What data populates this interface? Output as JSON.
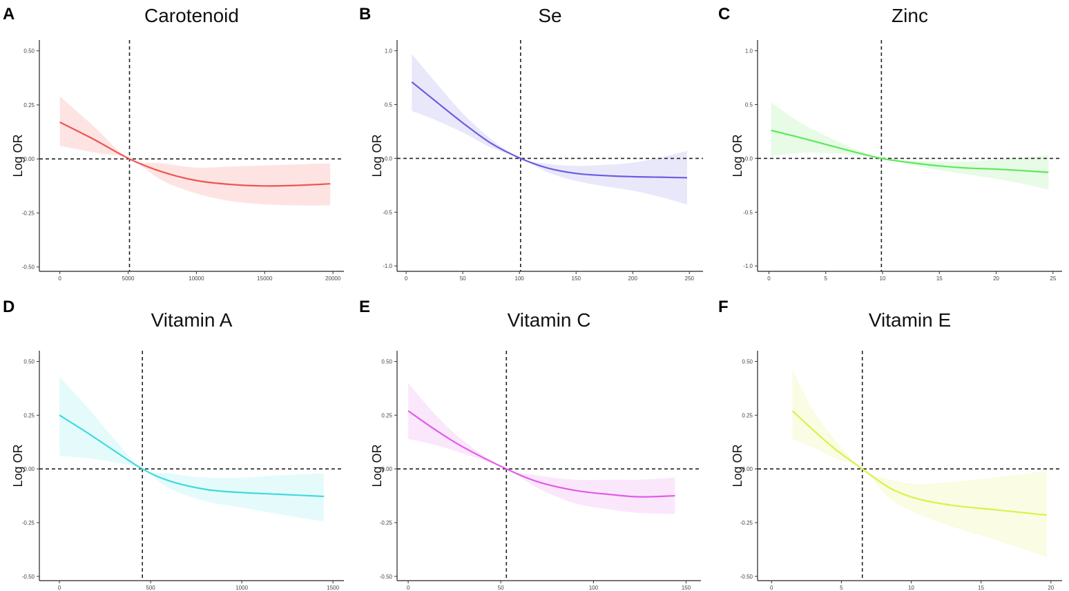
{
  "figure": {
    "y_axis_label": "Log OR"
  },
  "chart_data": [
    {
      "type": "line",
      "letter": "A",
      "title": "Carotenoid",
      "color": "#f0544f",
      "band_color": "#fde3e2",
      "xlim": [
        -1500,
        20800
      ],
      "ylim": [
        -0.52,
        0.55
      ],
      "xticks": [
        0,
        5000,
        10000,
        15000,
        20000
      ],
      "xtick_labels": [
        "0",
        "5000",
        "10000",
        "15000",
        "20000"
      ],
      "yticks": [
        -0.5,
        -0.25,
        0.0,
        0.25,
        0.5
      ],
      "ytick_labels": [
        "-0.50",
        "-0.25",
        "0.00",
        "0.25",
        "0.50"
      ],
      "reference_x": 5100,
      "reference_y": 0,
      "series": [
        {
          "name": "Carotenoid",
          "x": [
            0,
            2500,
            5100,
            7500,
            10000,
            12500,
            15000,
            17500,
            19800
          ],
          "y": [
            0.17,
            0.09,
            0.0,
            -0.06,
            -0.1,
            -0.118,
            -0.125,
            -0.122,
            -0.115
          ],
          "lower": [
            0.06,
            0.03,
            0.0,
            -0.1,
            -0.16,
            -0.195,
            -0.21,
            -0.215,
            -0.215
          ],
          "upper": [
            0.29,
            0.15,
            0.0,
            -0.02,
            -0.04,
            -0.035,
            -0.03,
            -0.025,
            -0.02
          ]
        }
      ]
    },
    {
      "type": "line",
      "letter": "B",
      "title": "Se",
      "color": "#6a5ce0",
      "band_color": "#e8e7fb",
      "xlim": [
        -8,
        262
      ],
      "ylim": [
        -1.05,
        1.1
      ],
      "xticks": [
        0,
        50,
        100,
        150,
        200,
        250
      ],
      "xtick_labels": [
        "0",
        "50",
        "100",
        "150",
        "200",
        "250"
      ],
      "yticks": [
        -1.0,
        -0.5,
        0.0,
        0.5,
        1.0
      ],
      "ytick_labels": [
        "-1.0",
        "-0.5",
        "0.0",
        "0.5",
        "1.0"
      ],
      "reference_x": 101,
      "reference_y": 0,
      "series": [
        {
          "name": "Se",
          "x": [
            5,
            25,
            50,
            75,
            101,
            125,
            150,
            175,
            200,
            225,
            248
          ],
          "y": [
            0.71,
            0.54,
            0.33,
            0.14,
            0.0,
            -0.09,
            -0.14,
            -0.16,
            -0.17,
            -0.175,
            -0.18
          ],
          "lower": [
            0.44,
            0.36,
            0.24,
            0.1,
            0.0,
            -0.13,
            -0.21,
            -0.26,
            -0.3,
            -0.36,
            -0.43
          ],
          "upper": [
            0.97,
            0.72,
            0.42,
            0.18,
            0.0,
            -0.05,
            -0.07,
            -0.06,
            -0.04,
            0.01,
            0.07
          ]
        }
      ]
    },
    {
      "type": "line",
      "letter": "C",
      "title": "Zinc",
      "color": "#5ee85a",
      "band_color": "#e6fbe5",
      "xlim": [
        -1,
        25.8
      ],
      "ylim": [
        -1.05,
        1.1
      ],
      "xticks": [
        0,
        5,
        10,
        15,
        20,
        25
      ],
      "xtick_labels": [
        "0",
        "5",
        "10",
        "15",
        "20",
        "25"
      ],
      "yticks": [
        -1.0,
        -0.5,
        0.0,
        0.5,
        1.0
      ],
      "ytick_labels": [
        "-1.0",
        "-0.5",
        "0.0",
        "0.5",
        "1.0"
      ],
      "reference_x": 9.9,
      "reference_y": 0,
      "series": [
        {
          "name": "Zinc",
          "x": [
            0.2,
            2.5,
            5,
            7.5,
            9.9,
            12.5,
            15,
            17.5,
            20,
            22.5,
            24.6
          ],
          "y": [
            0.26,
            0.2,
            0.13,
            0.06,
            0.0,
            -0.04,
            -0.07,
            -0.09,
            -0.1,
            -0.115,
            -0.13
          ],
          "lower": [
            0.02,
            0.05,
            0.05,
            0.03,
            0.0,
            -0.06,
            -0.11,
            -0.15,
            -0.19,
            -0.24,
            -0.29
          ],
          "upper": [
            0.52,
            0.35,
            0.21,
            0.09,
            0.0,
            -0.02,
            -0.03,
            -0.03,
            -0.01,
            0.01,
            0.03
          ]
        }
      ]
    },
    {
      "type": "line",
      "letter": "D",
      "title": "Vitamin A",
      "color": "#3fd9df",
      "band_color": "#e4fbfb",
      "xlim": [
        -110,
        1560
      ],
      "ylim": [
        -0.52,
        0.55
      ],
      "xticks": [
        0,
        500,
        1000,
        1500
      ],
      "xtick_labels": [
        "0",
        "500",
        "1000",
        "1500"
      ],
      "yticks": [
        -0.5,
        -0.25,
        0.0,
        0.25,
        0.5
      ],
      "ytick_labels": [
        "-0.50",
        "-0.25",
        "0.00",
        "0.25",
        "0.50"
      ],
      "reference_x": 455,
      "reference_y": 0,
      "series": [
        {
          "name": "Vitamin A",
          "x": [
            0,
            150,
            300,
            455,
            600,
            800,
            1000,
            1200,
            1450
          ],
          "y": [
            0.25,
            0.17,
            0.085,
            0.0,
            -0.055,
            -0.095,
            -0.11,
            -0.118,
            -0.128
          ],
          "lower": [
            0.06,
            0.05,
            0.03,
            0.0,
            -0.09,
            -0.15,
            -0.18,
            -0.21,
            -0.245
          ],
          "upper": [
            0.43,
            0.29,
            0.14,
            0.0,
            -0.02,
            -0.04,
            -0.04,
            -0.03,
            -0.02
          ]
        }
      ]
    },
    {
      "type": "line",
      "letter": "E",
      "title": "Vitamin C",
      "color": "#e05ce8",
      "band_color": "#fbe6fc",
      "xlim": [
        -6,
        158
      ],
      "ylim": [
        -0.52,
        0.55
      ],
      "xticks": [
        0,
        50,
        100,
        150
      ],
      "xtick_labels": [
        "0",
        "50",
        "100",
        "150"
      ],
      "yticks": [
        -0.5,
        -0.25,
        0.0,
        0.25,
        0.5
      ],
      "ytick_labels": [
        "-0.50",
        "-0.25",
        "0.00",
        "0.25",
        "0.50"
      ],
      "reference_x": 53,
      "reference_y": 0,
      "series": [
        {
          "name": "Vitamin C",
          "x": [
            0,
            15,
            30,
            53,
            70,
            90,
            110,
            125,
            144
          ],
          "y": [
            0.27,
            0.18,
            0.1,
            0.0,
            -0.06,
            -0.1,
            -0.12,
            -0.13,
            -0.125
          ],
          "lower": [
            0.14,
            0.11,
            0.07,
            0.0,
            -0.09,
            -0.16,
            -0.19,
            -0.205,
            -0.21
          ],
          "upper": [
            0.4,
            0.25,
            0.13,
            0.0,
            -0.03,
            -0.05,
            -0.05,
            -0.05,
            -0.04
          ]
        }
      ]
    },
    {
      "type": "line",
      "letter": "F",
      "title": "Vitamin E",
      "color": "#ddf04a",
      "band_color": "#fafce2",
      "xlim": [
        -1,
        20.8
      ],
      "ylim": [
        -0.52,
        0.55
      ],
      "xticks": [
        0,
        5,
        10,
        15,
        20
      ],
      "xtick_labels": [
        "0",
        "5",
        "10",
        "15",
        "20"
      ],
      "yticks": [
        -0.5,
        -0.25,
        0.0,
        0.25,
        0.5
      ],
      "ytick_labels": [
        "-0.50",
        "-0.25",
        "0.00",
        "0.25",
        "0.50"
      ],
      "reference_x": 6.5,
      "reference_y": 0,
      "series": [
        {
          "name": "Vitamin E",
          "x": [
            1.5,
            3,
            4.5,
            6.5,
            8.5,
            10.5,
            13,
            16,
            19.7
          ],
          "y": [
            0.27,
            0.18,
            0.095,
            0.0,
            -0.09,
            -0.14,
            -0.17,
            -0.19,
            -0.215
          ],
          "lower": [
            0.14,
            0.1,
            0.05,
            0.0,
            -0.14,
            -0.21,
            -0.27,
            -0.33,
            -0.41
          ],
          "upper": [
            0.46,
            0.27,
            0.14,
            0.0,
            -0.05,
            -0.07,
            -0.06,
            -0.04,
            -0.01
          ]
        }
      ]
    }
  ]
}
